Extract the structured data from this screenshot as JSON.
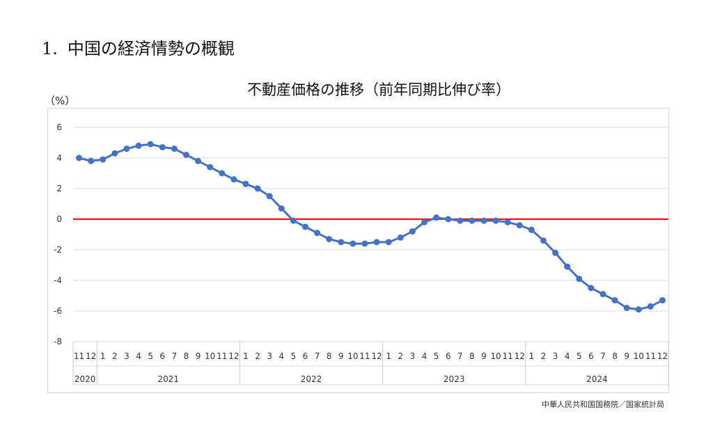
{
  "heading": {
    "number": "1.",
    "text": "中国の経済情勢の概観"
  },
  "source": "中華人民共和国国務院／国家統計局",
  "chart_data": {
    "type": "line",
    "title": "不動産価格の推移（前年同期比伸び率）",
    "ylabel": "（%）",
    "xlabel": "",
    "ylim": [
      -8,
      6
    ],
    "yticks": [
      6,
      4,
      2,
      0,
      -2,
      -4,
      -6,
      -8
    ],
    "grid": true,
    "legend": "none",
    "series_color": "#4472C4",
    "reference_line": {
      "y": 0,
      "color": "#FF0000"
    },
    "categories": [
      "11",
      "12",
      "1",
      "2",
      "3",
      "4",
      "5",
      "6",
      "7",
      "8",
      "9",
      "10",
      "11",
      "12",
      "1",
      "2",
      "3",
      "4",
      "5",
      "6",
      "7",
      "8",
      "9",
      "10",
      "11",
      "12",
      "1",
      "2",
      "3",
      "4",
      "5",
      "6",
      "7",
      "8",
      "9",
      "10",
      "11",
      "12",
      "1",
      "2",
      "3",
      "4",
      "5",
      "6",
      "7",
      "8",
      "9",
      "10",
      "11",
      "12"
    ],
    "year_groups": [
      {
        "label": "2020",
        "count": 2
      },
      {
        "label": "2021",
        "count": 12
      },
      {
        "label": "2022",
        "count": 12
      },
      {
        "label": "2023",
        "count": 12
      },
      {
        "label": "2024",
        "count": 12
      }
    ],
    "series": [
      {
        "values": [
          4.0,
          3.8,
          3.9,
          4.3,
          4.6,
          4.8,
          4.9,
          4.7,
          4.6,
          4.2,
          3.8,
          3.4,
          3.0,
          2.6,
          2.3,
          2.0,
          1.5,
          0.7,
          -0.1,
          -0.5,
          -0.9,
          -1.3,
          -1.5,
          -1.6,
          -1.6,
          -1.5,
          -1.5,
          -1.2,
          -0.8,
          -0.2,
          0.1,
          0.0,
          -0.1,
          -0.1,
          -0.1,
          -0.1,
          -0.2,
          -0.4,
          -0.7,
          -1.4,
          -2.2,
          -3.1,
          -3.9,
          -4.5,
          -4.9,
          -5.3,
          -5.8,
          -5.9,
          -5.7,
          -5.3
        ]
      }
    ]
  }
}
